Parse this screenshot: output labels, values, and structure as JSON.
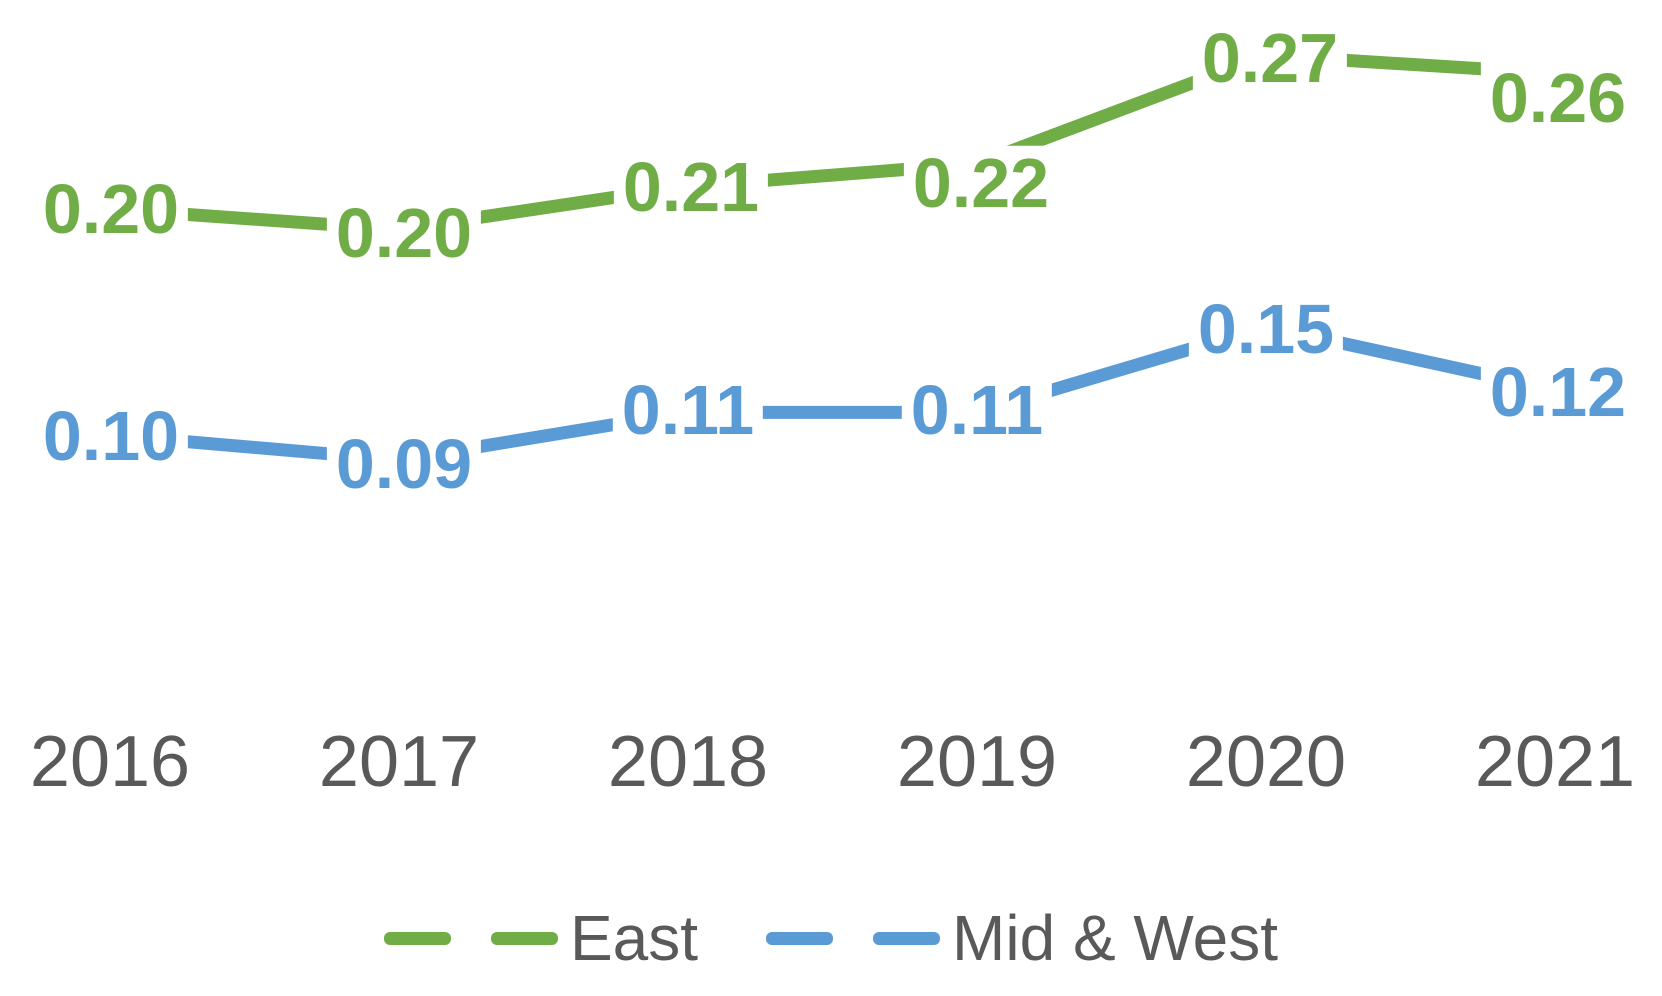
{
  "text_color": "#595959",
  "background_color": "#ffffff",
  "chart_data": {
    "type": "line",
    "title": "",
    "xlabel": "",
    "ylabel": "",
    "x": [
      "2016",
      "2017",
      "2018",
      "2019",
      "2020",
      "2021"
    ],
    "grid": false,
    "y_axis_visible": false,
    "ylim_implied": [
      0,
      0.3
    ],
    "legend_position": "bottom",
    "data_labels_visible": true,
    "series": [
      {
        "name": "East",
        "color": "#70AD47",
        "values": [
          0.2,
          0.2,
          0.21,
          0.22,
          0.27,
          0.26
        ],
        "labels": [
          "0.20",
          "0.20",
          "0.21",
          "0.22",
          "0.27",
          "0.26"
        ],
        "values_precise": [
          0.2,
          0.191,
          0.21,
          0.22,
          0.268,
          0.26
        ]
      },
      {
        "name": "Mid & West",
        "color": "#5B9BD5",
        "values": [
          0.1,
          0.09,
          0.11,
          0.11,
          0.15,
          0.12
        ],
        "labels": [
          "0.10",
          "0.09",
          "0.11",
          "0.11",
          "0.15",
          "0.12"
        ],
        "values_precise": [
          0.1,
          0.089,
          0.11,
          0.11,
          0.148,
          0.12
        ]
      }
    ]
  },
  "legend": {
    "items": [
      {
        "label": "East",
        "color": "#70AD47"
      },
      {
        "label": "Mid & West",
        "color": "#5B9BD5"
      }
    ]
  }
}
